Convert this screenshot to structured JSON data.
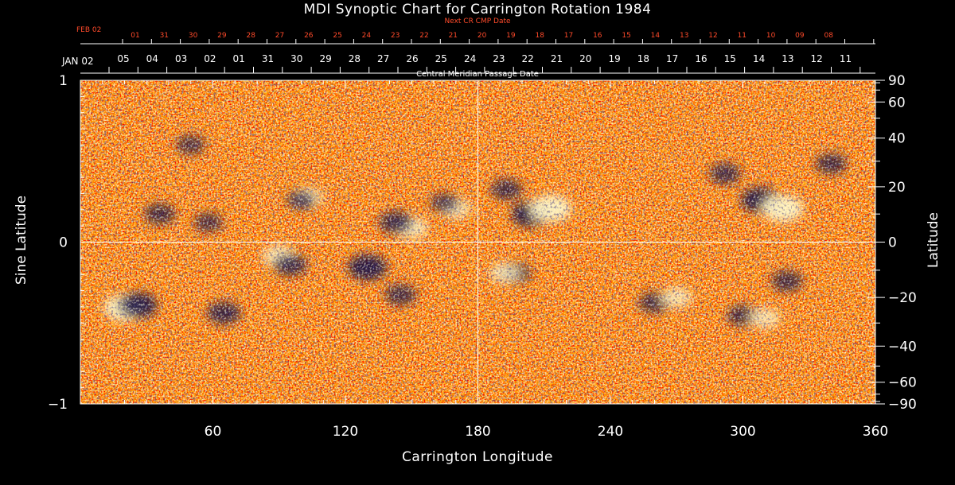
{
  "title": "MDI Synoptic Chart for Carrington Rotation 1984",
  "top_scale": {
    "next_label": "Next CR CMP Date",
    "month_label": "FEB 02",
    "red_dates": [
      "01",
      "31",
      "30",
      "29",
      "28",
      "27",
      "26",
      "25",
      "24",
      "23",
      "22",
      "21",
      "20",
      "19",
      "18",
      "17",
      "16",
      "15",
      "14",
      "13",
      "12",
      "11",
      "10",
      "09",
      "08"
    ],
    "color": "#ff4a2a"
  },
  "cmp_scale": {
    "month_label": "JAN 02",
    "dates": [
      "05",
      "04",
      "03",
      "02",
      "01",
      "31",
      "30",
      "29",
      "28",
      "27",
      "26",
      "25",
      "24",
      "23",
      "22",
      "21",
      "20",
      "19",
      "18",
      "17",
      "16",
      "15",
      "14",
      "13",
      "12",
      "11"
    ],
    "axis_label": "Central Meridian Passage Date"
  },
  "chart_data": {
    "type": "heatmap",
    "description_source": "solar synoptic magnetogram",
    "title": "MDI Synoptic Chart for Carrington Rotation 1984",
    "xlabel": "Carrington Longitude",
    "ylabel": "Sine Latitude",
    "ylabel_right": "Latitude",
    "xlim": [
      0,
      360
    ],
    "ylim": [
      -1,
      1
    ],
    "x_ticks": [
      "60",
      "120",
      "180",
      "240",
      "300",
      "360"
    ],
    "x_tick_values": [
      60,
      120,
      180,
      240,
      300,
      360
    ],
    "y_left_ticks": [
      "1",
      "0",
      "−1"
    ],
    "y_left_tick_values": [
      1,
      0,
      -1
    ],
    "y_right_ticks": [
      "90",
      "60",
      "40",
      "20",
      "0",
      "−20",
      "−40",
      "−60",
      "−90"
    ],
    "y_right_tick_values": [
      90,
      60,
      40,
      20,
      0,
      -20,
      -40,
      -60,
      -90
    ],
    "reference_lines": {
      "longitude": 180,
      "sine_latitude": 0
    },
    "colors": {
      "background_field": "#ff5a10",
      "positive": "#fff4c0",
      "negative": "#1a1240",
      "mid": "#ff3000"
    },
    "active_regions": [
      {
        "lon": 20,
        "lat": -24,
        "polarity": "positive",
        "strength": 1.0
      },
      {
        "lon": 26,
        "lat": -23,
        "polarity": "negative",
        "strength": 0.9
      },
      {
        "lon": 36,
        "lat": 10,
        "polarity": "negative",
        "strength": 0.6
      },
      {
        "lon": 58,
        "lat": 7,
        "polarity": "negative",
        "strength": 0.5
      },
      {
        "lon": 65,
        "lat": -26,
        "polarity": "negative",
        "strength": 0.7
      },
      {
        "lon": 50,
        "lat": 37,
        "polarity": "negative",
        "strength": 0.5
      },
      {
        "lon": 90,
        "lat": -5,
        "polarity": "positive",
        "strength": 0.7
      },
      {
        "lon": 95,
        "lat": -8,
        "polarity": "negative",
        "strength": 0.7
      },
      {
        "lon": 103,
        "lat": 16,
        "polarity": "positive",
        "strength": 0.6
      },
      {
        "lon": 100,
        "lat": 15,
        "polarity": "negative",
        "strength": 0.5
      },
      {
        "lon": 130,
        "lat": -9,
        "polarity": "negative",
        "strength": 0.9
      },
      {
        "lon": 145,
        "lat": -19,
        "polarity": "negative",
        "strength": 0.6
      },
      {
        "lon": 150,
        "lat": 5,
        "polarity": "positive",
        "strength": 0.7
      },
      {
        "lon": 143,
        "lat": 7,
        "polarity": "negative",
        "strength": 0.7
      },
      {
        "lon": 170,
        "lat": 12,
        "polarity": "positive",
        "strength": 0.6
      },
      {
        "lon": 165,
        "lat": 14,
        "polarity": "negative",
        "strength": 0.5
      },
      {
        "lon": 204,
        "lat": 10,
        "polarity": "negative",
        "strength": 0.9
      },
      {
        "lon": 213,
        "lat": 12,
        "polarity": "positive",
        "strength": 1.0
      },
      {
        "lon": 193,
        "lat": 19,
        "polarity": "negative",
        "strength": 0.6
      },
      {
        "lon": 197,
        "lat": -11,
        "polarity": "negative",
        "strength": 0.6
      },
      {
        "lon": 192,
        "lat": -11,
        "polarity": "positive",
        "strength": 0.6
      },
      {
        "lon": 260,
        "lat": -22,
        "polarity": "negative",
        "strength": 0.6
      },
      {
        "lon": 270,
        "lat": -20,
        "polarity": "positive",
        "strength": 0.6
      },
      {
        "lon": 308,
        "lat": 15,
        "polarity": "negative",
        "strength": 0.9
      },
      {
        "lon": 318,
        "lat": 12,
        "polarity": "positive",
        "strength": 1.0
      },
      {
        "lon": 320,
        "lat": -14,
        "polarity": "negative",
        "strength": 0.6
      },
      {
        "lon": 292,
        "lat": 25,
        "polarity": "negative",
        "strength": 0.6
      },
      {
        "lon": 340,
        "lat": 29,
        "polarity": "negative",
        "strength": 0.6
      },
      {
        "lon": 300,
        "lat": -27,
        "polarity": "negative",
        "strength": 0.6
      },
      {
        "lon": 310,
        "lat": -28,
        "polarity": "positive",
        "strength": 0.6
      }
    ]
  }
}
